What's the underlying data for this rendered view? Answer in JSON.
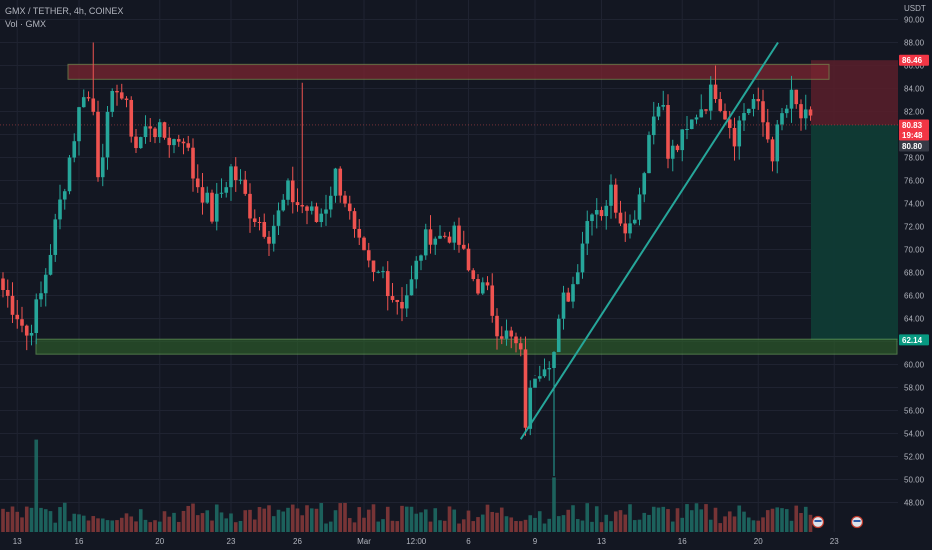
{
  "header": {
    "symbol_line": "GMX / TETHER, 4h, COINEX",
    "volume_line": "Vol · GMX"
  },
  "colors": {
    "background": "#131722",
    "up": "#26a69a",
    "down": "#ef5350",
    "grid": "#1f2331",
    "resistance_zone": "#7a2530",
    "support_zone": "#2e5f2a",
    "trendline": "#26a69a",
    "short_risk": "#5a1f2a",
    "short_target": "#0f3b35",
    "tag_red": "#f23645",
    "tag_green": "#089981",
    "tag_grey": "#363a45"
  },
  "chart_data": {
    "type": "candlestick",
    "quote_currency": "USDT",
    "ylim": [
      47,
      91
    ],
    "y_ticks": [
      "48.00",
      "50.00",
      "52.00",
      "54.00",
      "56.00",
      "58.00",
      "60.00",
      "62.00",
      "64.00",
      "66.00",
      "68.00",
      "70.00",
      "72.00",
      "74.00",
      "76.00",
      "78.00",
      "80.00",
      "82.00",
      "84.00",
      "86.00",
      "88.00",
      "90.00"
    ],
    "x_tick_labels": [
      "13",
      "16",
      "20",
      "23",
      "26",
      "Mar",
      "12:00",
      "6",
      "9",
      "13",
      "16",
      "20",
      "23"
    ],
    "close_path": [
      [
        0,
        66.5
      ],
      [
        3,
        64.5
      ],
      [
        5,
        62.5
      ],
      [
        8,
        66.0
      ],
      [
        11,
        72.0
      ],
      [
        14,
        78.0
      ],
      [
        16,
        82.0
      ],
      [
        17,
        84.0
      ],
      [
        19,
        82.0
      ],
      [
        20,
        77.0
      ],
      [
        22,
        81.0
      ],
      [
        24,
        84.5
      ],
      [
        26,
        82.0
      ],
      [
        28,
        79.0
      ],
      [
        31,
        81.0
      ],
      [
        33,
        80.0
      ],
      [
        36,
        79.5
      ],
      [
        38,
        80.0
      ],
      [
        40,
        76.5
      ],
      [
        42,
        75.0
      ],
      [
        44,
        73.0
      ],
      [
        46,
        75.0
      ],
      [
        48,
        77.0
      ],
      [
        50,
        75.5
      ],
      [
        52,
        73.5
      ],
      [
        54,
        72.5
      ],
      [
        56,
        71.5
      ],
      [
        58,
        73.0
      ],
      [
        60,
        75.0
      ],
      [
        62,
        74.0
      ],
      [
        64,
        73.5
      ],
      [
        66,
        72.5
      ],
      [
        68,
        74.0
      ],
      [
        70,
        76.5
      ],
      [
        72,
        74.5
      ],
      [
        74,
        71.0
      ],
      [
        76,
        69.0
      ],
      [
        78,
        67.5
      ],
      [
        80,
        68.0
      ],
      [
        82,
        66.0
      ],
      [
        84,
        65.5
      ],
      [
        86,
        67.0
      ],
      [
        88,
        70.0
      ],
      [
        90,
        71.5
      ],
      [
        92,
        71.0
      ],
      [
        94,
        71.5
      ],
      [
        96,
        70.5
      ],
      [
        98,
        68.0
      ],
      [
        100,
        67.0
      ],
      [
        102,
        66.0
      ],
      [
        104,
        63.5
      ],
      [
        106,
        62.5
      ],
      [
        108,
        61.5
      ],
      [
        109,
        60.5
      ],
      [
        110,
        55.0
      ],
      [
        112,
        59.5
      ],
      [
        114,
        60.5
      ],
      [
        116,
        61.0
      ],
      [
        118,
        65.5
      ],
      [
        120,
        67.0
      ],
      [
        122,
        71.0
      ],
      [
        124,
        74.0
      ],
      [
        126,
        73.5
      ],
      [
        128,
        75.0
      ],
      [
        130,
        73.0
      ],
      [
        132,
        72.0
      ],
      [
        134,
        75.0
      ],
      [
        136,
        80.0
      ],
      [
        138,
        83.5
      ],
      [
        139,
        82.0
      ],
      [
        140,
        78.0
      ],
      [
        142,
        79.0
      ],
      [
        144,
        80.0
      ],
      [
        146,
        82.0
      ],
      [
        148,
        83.0
      ],
      [
        150,
        84.0
      ],
      [
        152,
        82.0
      ],
      [
        154,
        80.0
      ],
      [
        156,
        82.0
      ],
      [
        158,
        83.0
      ],
      [
        160,
        81.0
      ],
      [
        162,
        78.5
      ],
      [
        164,
        81.5
      ],
      [
        166,
        83.0
      ],
      [
        168,
        81.5
      ],
      [
        170,
        80.8
      ]
    ],
    "n_candles": 171,
    "volume": {
      "base_level": 2,
      "spike_candle": 7,
      "spike_value": 22
    },
    "annotations": {
      "resistance_zone": {
        "from": 84.8,
        "to": 86.1
      },
      "support_zone": {
        "from": 60.9,
        "to": 62.2
      },
      "trendline": {
        "from": [
          109,
          53.5
        ],
        "to": [
          156,
          88.0
        ]
      },
      "position": {
        "entry": 80.83,
        "stop": 86.46,
        "target": 62.14,
        "start_candle": 171
      }
    },
    "price_tags": [
      {
        "label": "86.46",
        "value": 86.46,
        "color": "#f23645"
      },
      {
        "label": "80.83",
        "value": 80.83,
        "color": "#f23645"
      },
      {
        "label": "19:48",
        "value": 79.95,
        "color": "#f23645"
      },
      {
        "label": "80.80",
        "value": 79.0,
        "color": "#363a45"
      },
      {
        "label": "62.14",
        "value": 62.14,
        "color": "#089981"
      }
    ]
  }
}
